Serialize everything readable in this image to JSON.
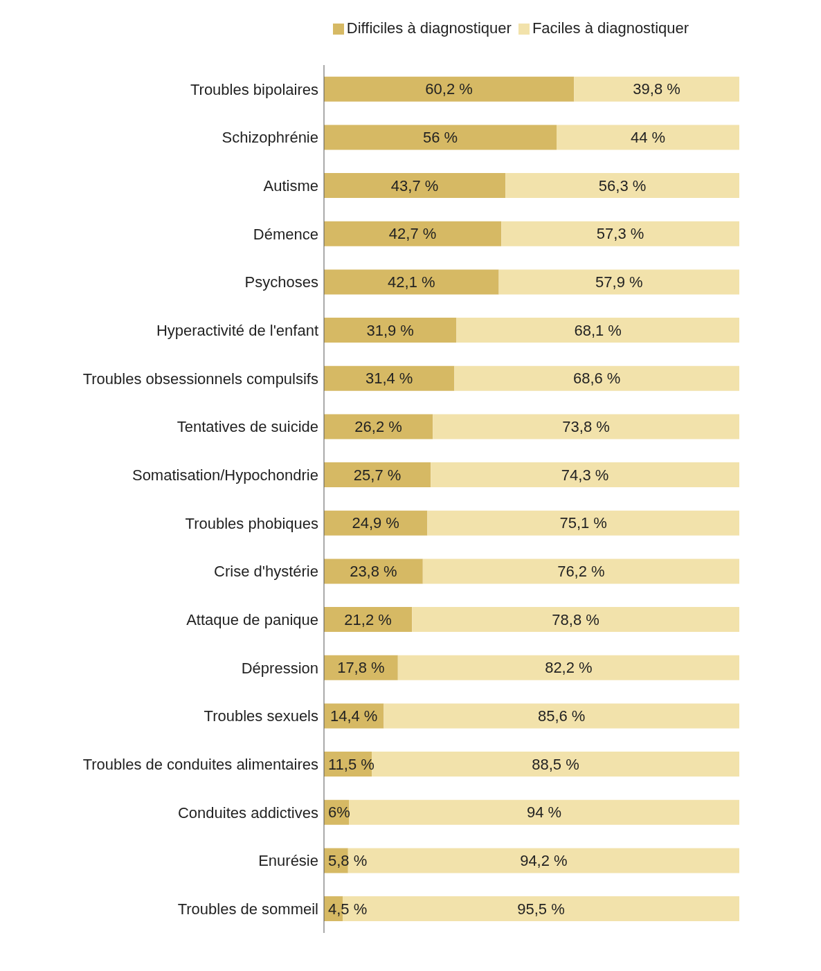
{
  "chart_data": {
    "type": "bar",
    "orientation": "horizontal",
    "stacked": true,
    "legend": "top",
    "grid": false,
    "categories": [
      "Troubles bipolaires",
      "Schizophrénie",
      "Autisme",
      "Démence",
      "Psychoses",
      "Hyperactivité de l'enfant",
      "Troubles obsessionnels compulsifs",
      "Tentatives de suicide",
      "Somatisation/Hypochondrie",
      "Troubles phobiques",
      "Crise d'hystérie",
      "Attaque de panique",
      "Dépression",
      "Troubles sexuels",
      "Troubles de conduites alimentaires",
      "Conduites addictives",
      "Enurésie",
      "Troubles de sommeil"
    ],
    "series": [
      {
        "name": "Difficiles à diagnostiquer",
        "color": "#d6b964",
        "values": [
          60.2,
          56,
          43.7,
          42.7,
          42.1,
          31.9,
          31.4,
          26.2,
          25.7,
          24.9,
          23.8,
          21.2,
          17.8,
          14.4,
          11.5,
          6,
          5.8,
          4.5
        ],
        "value_labels": [
          "60,2 %",
          "56 %",
          "43,7 %",
          "42,7 %",
          "42,1 %",
          "31,9 %",
          "31,4 %",
          "26,2 %",
          "25,7 %",
          "24,9 %",
          "23,8 %",
          "21,2 %",
          "17,8 %",
          "14,4 %",
          "11,5 %",
          "6%",
          "5,8 %",
          "4,5 %"
        ]
      },
      {
        "name": "Faciles à diagnostiquer",
        "color": "#f2e2ab",
        "values": [
          39.8,
          44,
          56.3,
          57.3,
          57.9,
          68.1,
          68.6,
          73.8,
          74.3,
          75.1,
          76.2,
          78.8,
          82.2,
          85.6,
          88.5,
          94,
          94.2,
          95.5
        ],
        "value_labels": [
          "39,8 %",
          "44 %",
          "56,3 %",
          "57,3 %",
          "57,9 %",
          "68,1 %",
          "68,6 %",
          "73,8 %",
          "74,3 %",
          "75,1 %",
          "76,2 %",
          "78,8 %",
          "82,2 %",
          "85,6 %",
          "88,5 %",
          "94 %",
          "94,2 %",
          "95,5 %"
        ]
      }
    ]
  }
}
